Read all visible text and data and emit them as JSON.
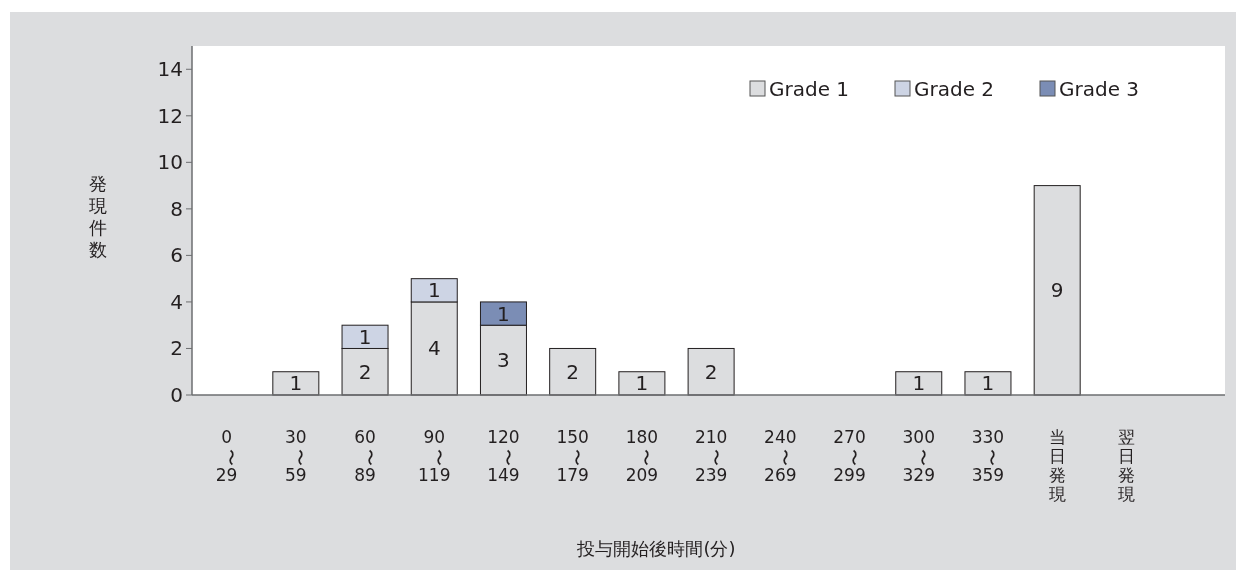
{
  "chart_data": {
    "type": "bar",
    "stacked": true,
    "data_labels": true,
    "xlabel": "投与開始後時間(分)",
    "ylabel": "発現件数",
    "categories": [
      "0〜29",
      "30〜59",
      "60〜89",
      "90〜119",
      "120〜149",
      "150〜179",
      "180〜209",
      "210〜239",
      "240〜269",
      "270〜299",
      "300〜329",
      "330〜359",
      "当日発現",
      "翌日発現"
    ],
    "series": [
      {
        "name": "Grade 1",
        "color": "#dcdddf",
        "values": [
          null,
          1,
          2,
          4,
          3,
          2,
          1,
          2,
          null,
          null,
          1,
          1,
          9,
          null
        ]
      },
      {
        "name": "Grade 2",
        "color": "#cdd4e4",
        "values": [
          null,
          null,
          1,
          1,
          null,
          null,
          null,
          null,
          null,
          null,
          null,
          null,
          null,
          null
        ]
      },
      {
        "name": "Grade 3",
        "color": "#7b8db5",
        "values": [
          null,
          null,
          null,
          null,
          1,
          null,
          null,
          null,
          null,
          null,
          null,
          null,
          null,
          null
        ]
      }
    ],
    "ylim": [
      0,
      15
    ],
    "yticks": [
      0,
      2,
      4,
      6,
      8,
      10,
      12,
      14
    ],
    "grid": false,
    "legend": "top right"
  }
}
